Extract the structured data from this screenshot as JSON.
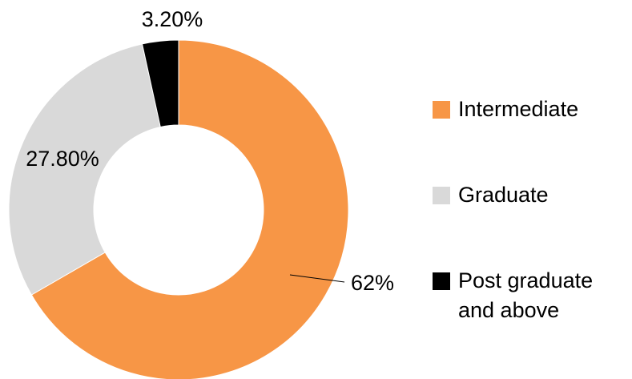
{
  "chart_data": {
    "type": "donut",
    "categories": [
      "Intermediate",
      "Graduate",
      "Post graduate and above"
    ],
    "values": [
      62,
      27.8,
      3.2
    ],
    "value_labels": [
      "62%",
      "27.80%",
      "3.20%"
    ],
    "colors": [
      "#f79646",
      "#d9d9d9",
      "#000000"
    ],
    "legend": "right"
  }
}
